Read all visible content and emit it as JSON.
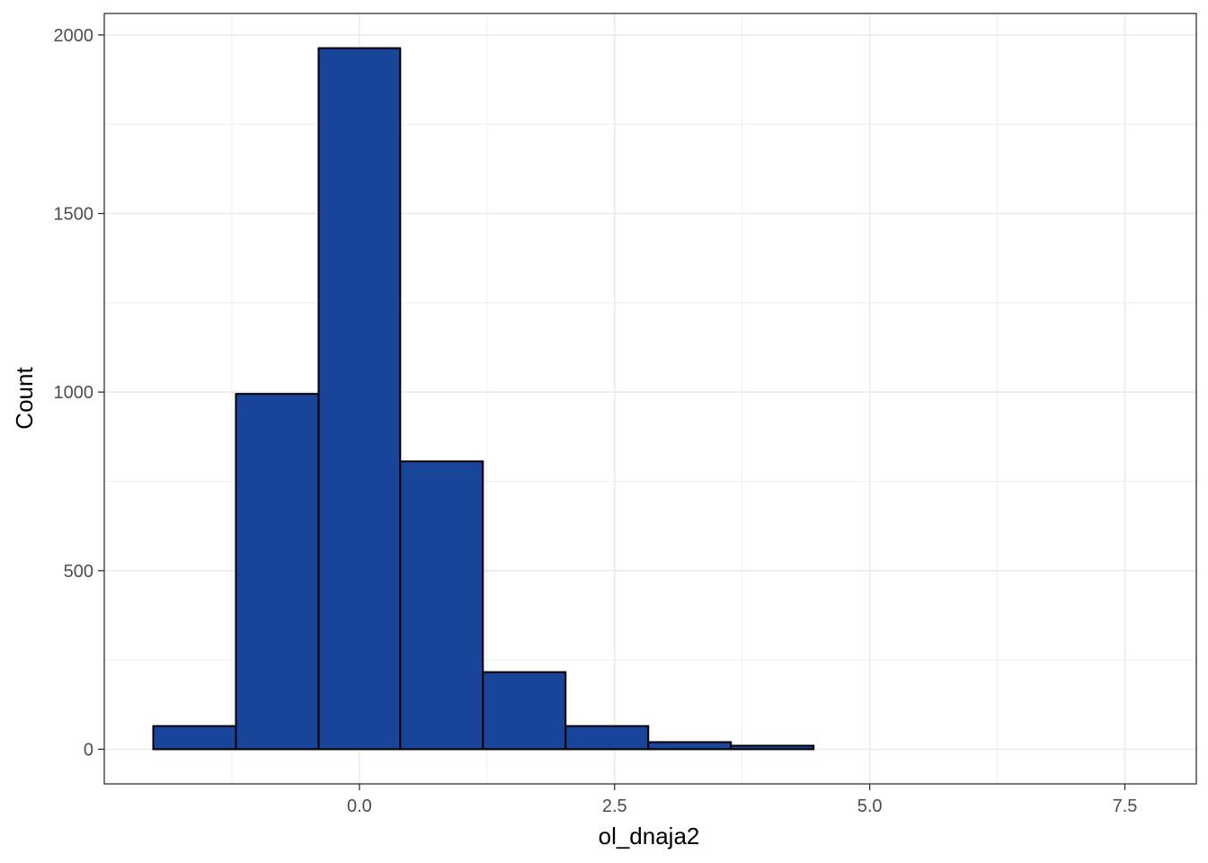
{
  "chart_data": {
    "type": "bar",
    "subtype": "histogram",
    "title": "",
    "xlabel": "ol_dnaja2",
    "ylabel": "Count",
    "x_tick_values": [
      0.0,
      2.5,
      5.0,
      7.5
    ],
    "x_tick_labels": [
      "0.0",
      "2.5",
      "5.0",
      "7.5"
    ],
    "y_tick_values": [
      0,
      500,
      1000,
      1500,
      2000
    ],
    "y_tick_labels": [
      "0",
      "500",
      "1000",
      "1500",
      "2000"
    ],
    "xlim": [
      -2.5,
      8.2
    ],
    "ylim": [
      -97,
      2060
    ],
    "bins": [
      {
        "x0": -2.02,
        "x1": -1.21,
        "count": 65
      },
      {
        "x0": -1.21,
        "x1": -0.4,
        "count": 995
      },
      {
        "x0": -0.4,
        "x1": 0.4,
        "count": 1963
      },
      {
        "x0": 0.4,
        "x1": 1.21,
        "count": 806
      },
      {
        "x0": 1.21,
        "x1": 2.02,
        "count": 216
      },
      {
        "x0": 2.02,
        "x1": 2.83,
        "count": 65
      },
      {
        "x0": 2.83,
        "x1": 3.64,
        "count": 20
      },
      {
        "x0": 3.64,
        "x1": 4.45,
        "count": 10
      },
      {
        "x0": 4.45,
        "x1": 5.26,
        "count": 0
      },
      {
        "x0": 5.26,
        "x1": 6.07,
        "count": 0
      },
      {
        "x0": 6.07,
        "x1": 6.88,
        "count": 0
      },
      {
        "x0": 6.88,
        "x1": 7.69,
        "count": 0
      }
    ],
    "bar_fill": "#18449a",
    "bar_stroke": "#000000",
    "grid": true,
    "grid_color": "#ebebeb",
    "legend": "none"
  }
}
